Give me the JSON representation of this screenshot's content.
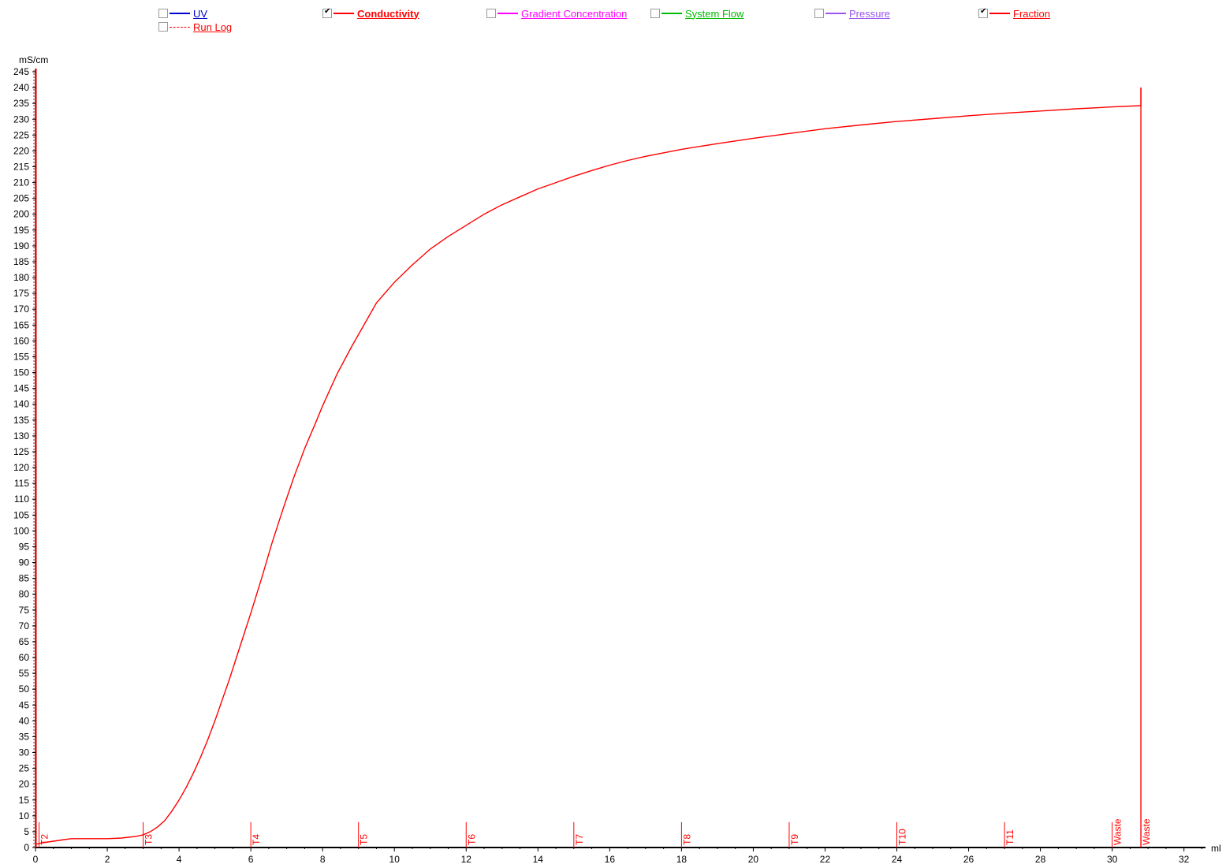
{
  "legend": [
    {
      "key": "uv",
      "label": "UV",
      "checked": false,
      "color": "#0000cc",
      "bold": false,
      "dashed": false
    },
    {
      "key": "conductivity",
      "label": "Conductivity",
      "checked": true,
      "color": "#ff0000",
      "bold": true,
      "dashed": false
    },
    {
      "key": "gradient",
      "label": "Gradient Concentration",
      "checked": false,
      "color": "#ff00ff",
      "bold": false,
      "dashed": false
    },
    {
      "key": "flow",
      "label": "System Flow",
      "checked": false,
      "color": "#00bb00",
      "bold": false,
      "dashed": false
    },
    {
      "key": "pressure",
      "label": "Pressure",
      "checked": false,
      "color": "#9955ee",
      "bold": false,
      "dashed": false
    },
    {
      "key": "fraction",
      "label": "Fraction",
      "checked": true,
      "color": "#ff0000",
      "bold": false,
      "dashed": false
    },
    {
      "key": "runlog",
      "label": "Run Log",
      "checked": false,
      "color": "#ff0000",
      "bold": false,
      "dashed": true
    }
  ],
  "chart_data": {
    "type": "line",
    "title": "",
    "xlabel": "ml",
    "ylabel": "mS/cm",
    "xlim": [
      0,
      32.6
    ],
    "ylim": [
      0,
      246
    ],
    "x_ticks": [
      0,
      2,
      4,
      6,
      8,
      10,
      12,
      14,
      16,
      18,
      20,
      22,
      24,
      26,
      28,
      30,
      32
    ],
    "y_ticks": [
      0,
      5,
      10,
      15,
      20,
      25,
      30,
      35,
      40,
      45,
      50,
      55,
      60,
      65,
      70,
      75,
      80,
      85,
      90,
      95,
      100,
      105,
      110,
      115,
      120,
      125,
      130,
      135,
      140,
      145,
      150,
      155,
      160,
      165,
      170,
      175,
      180,
      185,
      190,
      195,
      200,
      205,
      210,
      215,
      220,
      225,
      230,
      235,
      240,
      245
    ],
    "grid": false,
    "series": [
      {
        "name": "Conductivity",
        "color": "#ff0000",
        "x": [
          0,
          0.2,
          0.5,
          0.8,
          1.0,
          1.5,
          2.0,
          2.4,
          2.8,
          3.0,
          3.2,
          3.4,
          3.6,
          3.8,
          4.0,
          4.2,
          4.4,
          4.6,
          4.8,
          5.0,
          5.2,
          5.4,
          5.6,
          5.8,
          6.0,
          6.3,
          6.6,
          6.9,
          7.2,
          7.5,
          7.8,
          8.0,
          8.4,
          8.8,
          9.0,
          9.5,
          10.0,
          10.5,
          11.0,
          11.5,
          12.0,
          12.5,
          13.0,
          13.5,
          14.0,
          14.5,
          15.0,
          15.5,
          16.0,
          16.5,
          17.0,
          18.0,
          19.0,
          20.0,
          21.0,
          22.0,
          23.0,
          24.0,
          25.0,
          26.0,
          27.0,
          28.0,
          29.0,
          30.0,
          30.8
        ],
        "y": [
          1,
          1.5,
          2,
          2.5,
          2.8,
          2.8,
          2.8,
          3,
          3.5,
          4,
          5,
          6.5,
          8.5,
          11.5,
          15,
          19,
          23.5,
          28.5,
          34,
          40,
          46.5,
          53,
          60,
          67,
          74,
          85,
          96.5,
          107,
          117,
          126,
          134,
          139.5,
          149.5,
          158,
          162,
          172,
          178.5,
          184,
          189,
          193,
          196.5,
          200,
          203,
          205.5,
          208,
          210,
          212,
          213.8,
          215.5,
          217,
          218.3,
          220.5,
          222.3,
          224,
          225.5,
          227,
          228.2,
          229.3,
          230.2,
          231.1,
          231.9,
          232.6,
          233.3,
          233.9,
          234.3
        ]
      }
    ],
    "drop_line": {
      "x": 30.8,
      "from": 240,
      "to": 0
    },
    "fractions": [
      {
        "x": 0.1,
        "label": "T2"
      },
      {
        "x": 3.0,
        "label": "T3"
      },
      {
        "x": 6.0,
        "label": "T4"
      },
      {
        "x": 9.0,
        "label": "T5"
      },
      {
        "x": 12.0,
        "label": "T6"
      },
      {
        "x": 15.0,
        "label": "T7"
      },
      {
        "x": 18.0,
        "label": "T8"
      },
      {
        "x": 21.0,
        "label": "T9"
      },
      {
        "x": 24.0,
        "label": "T10"
      },
      {
        "x": 27.0,
        "label": "T11"
      },
      {
        "x": 30.0,
        "label": "Waste"
      },
      {
        "x": 30.8,
        "label": "Waste"
      }
    ],
    "fraction_marker_height": 8
  }
}
